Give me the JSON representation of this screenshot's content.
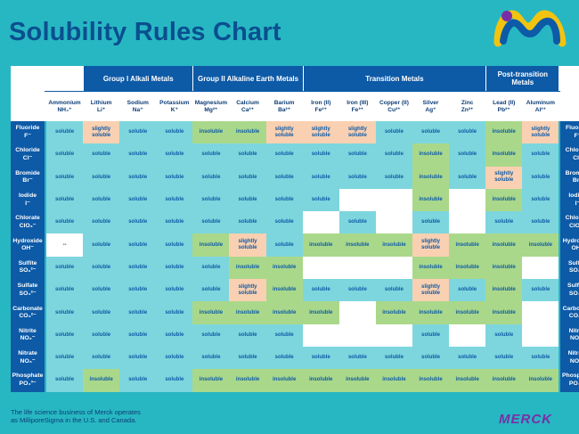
{
  "title": "Solubility Rules Chart",
  "footer_text": "The life science business of Merck operates as MilliporeSigma in the U.S. and Canada.",
  "brand": "MERCK",
  "groups": [
    {
      "name": "Group I Alkali Metals",
      "span": 3
    },
    {
      "name": "Group II Alkaline Earth Metals",
      "span": 3
    },
    {
      "name": "Transition Metals",
      "span": 5
    },
    {
      "name": "Post-transition Metals",
      "span": 2
    }
  ],
  "cations": [
    {
      "name": "Ammonium",
      "ion": "NH₄⁺"
    },
    {
      "name": "Lithium",
      "ion": "Li⁺"
    },
    {
      "name": "Sodium",
      "ion": "Na⁺"
    },
    {
      "name": "Potassium",
      "ion": "K⁺"
    },
    {
      "name": "Magnesium",
      "ion": "Mg²⁺"
    },
    {
      "name": "Calcium",
      "ion": "Ca²⁺"
    },
    {
      "name": "Barium",
      "ion": "Ba²⁺"
    },
    {
      "name": "Iron (II)",
      "ion": "Fe²⁺"
    },
    {
      "name": "Iron (III)",
      "ion": "Fe³⁺"
    },
    {
      "name": "Copper (II)",
      "ion": "Cu²⁺"
    },
    {
      "name": "Silver",
      "ion": "Ag⁺"
    },
    {
      "name": "Zinc",
      "ion": "Zn²⁺"
    },
    {
      "name": "Lead (II)",
      "ion": "Pb²⁺"
    },
    {
      "name": "Aluminum",
      "ion": "Al³⁺"
    }
  ],
  "anions": [
    {
      "name": "Fluoride",
      "ion": "F⁻"
    },
    {
      "name": "Chloride",
      "ion": "Cl⁻"
    },
    {
      "name": "Bromide",
      "ion": "Br⁻"
    },
    {
      "name": "Iodide",
      "ion": "I⁻"
    },
    {
      "name": "Chlorate",
      "ion": "ClO₃⁻"
    },
    {
      "name": "Hydroxide",
      "ion": "OH⁻"
    },
    {
      "name": "Sulfite",
      "ion": "SO₃²⁻"
    },
    {
      "name": "Sulfate",
      "ion": "SO₄²⁻"
    },
    {
      "name": "Carbonate",
      "ion": "CO₃²⁻"
    },
    {
      "name": "Nitrite",
      "ion": "NO₂⁻"
    },
    {
      "name": "Nitrate",
      "ion": "NO₃⁻"
    },
    {
      "name": "Phosphate",
      "ion": "PO₄³⁻"
    }
  ],
  "rows": [
    [
      "soluble",
      "slightly soluble",
      "soluble",
      "soluble",
      "insoluble",
      "insoluble",
      "slightly soluble",
      "slightly soluble",
      "slightly soluble",
      "soluble",
      "soluble",
      "soluble",
      "insoluble",
      "slightly soluble"
    ],
    [
      "soluble",
      "soluble",
      "soluble",
      "soluble",
      "soluble",
      "soluble",
      "soluble",
      "soluble",
      "soluble",
      "soluble",
      "insoluble",
      "soluble",
      "insoluble",
      "soluble"
    ],
    [
      "soluble",
      "soluble",
      "soluble",
      "soluble",
      "soluble",
      "soluble",
      "soluble",
      "soluble",
      "soluble",
      "soluble",
      "insoluble",
      "soluble",
      "slightly soluble",
      "soluble"
    ],
    [
      "soluble",
      "soluble",
      "soluble",
      "soluble",
      "soluble",
      "soluble",
      "soluble",
      "soluble",
      "",
      "",
      "insoluble",
      "",
      "insoluble",
      "soluble"
    ],
    [
      "soluble",
      "soluble",
      "soluble",
      "soluble",
      "soluble",
      "soluble",
      "soluble",
      "",
      "soluble",
      "",
      "soluble",
      "",
      "soluble",
      "soluble"
    ],
    [
      "--",
      "soluble",
      "soluble",
      "soluble",
      "insoluble",
      "slightly soluble",
      "soluble",
      "insoluble",
      "insoluble",
      "insoluble",
      "slightly soluble",
      "insoluble",
      "insoluble",
      "insoluble"
    ],
    [
      "soluble",
      "soluble",
      "soluble",
      "soluble",
      "soluble",
      "insoluble",
      "insoluble",
      "",
      "",
      "",
      "insoluble",
      "insoluble",
      "insoluble",
      ""
    ],
    [
      "soluble",
      "soluble",
      "soluble",
      "soluble",
      "soluble",
      "slightly soluble",
      "insoluble",
      "soluble",
      "soluble",
      "soluble",
      "slightly soluble",
      "soluble",
      "insoluble",
      "soluble"
    ],
    [
      "soluble",
      "soluble",
      "soluble",
      "soluble",
      "insoluble",
      "insoluble",
      "insoluble",
      "insoluble",
      "",
      "insoluble",
      "insoluble",
      "insoluble",
      "insoluble",
      ""
    ],
    [
      "soluble",
      "soluble",
      "soluble",
      "soluble",
      "soluble",
      "soluble",
      "soluble",
      "",
      "",
      "",
      "soluble",
      "",
      "soluble",
      ""
    ],
    [
      "soluble",
      "soluble",
      "soluble",
      "soluble",
      "soluble",
      "soluble",
      "soluble",
      "soluble",
      "soluble",
      "soluble",
      "soluble",
      "soluble",
      "soluble",
      "soluble"
    ],
    [
      "soluble",
      "insoluble",
      "soluble",
      "soluble",
      "insoluble",
      "insoluble",
      "insoluble",
      "insoluble",
      "insoluble",
      "insoluble",
      "insoluble",
      "insoluble",
      "insoluble",
      "insoluble"
    ]
  ],
  "colors": {
    "header_blue": "#0d5aa7",
    "soluble": "#7dd6dd",
    "insoluble": "#aad88a",
    "slightly_soluble": "#f9d0b1",
    "background": "#27b7c3"
  }
}
